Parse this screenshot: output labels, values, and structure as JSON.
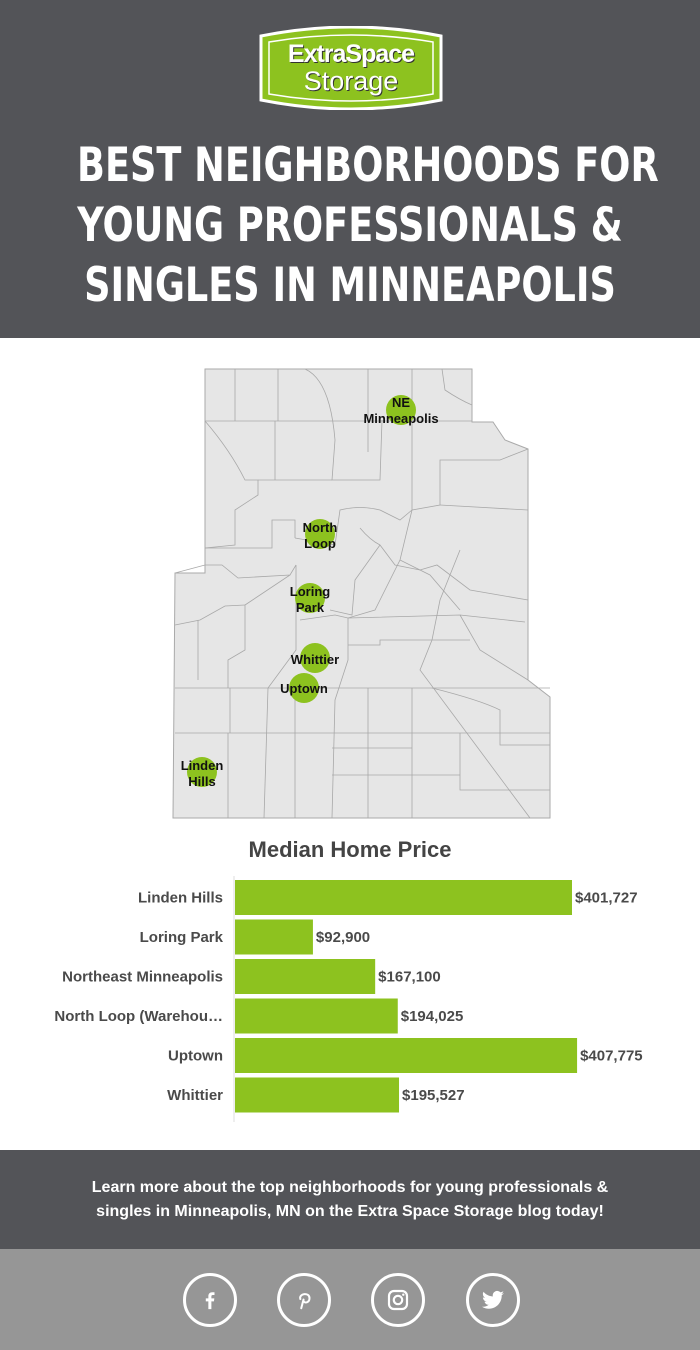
{
  "header": {
    "logo": {
      "line1": "ExtraSpace",
      "line2": "Storage",
      "registered": "®"
    },
    "title_lines": [
      "BEST NEIGHBORHOODS FOR",
      "YOUNG PROFESSIONALS &",
      "SINGLES IN MINNEAPOLIS"
    ]
  },
  "map": {
    "markers": [
      {
        "line1": "NE",
        "line2": "Minneapolis"
      },
      {
        "line1": "North",
        "line2": "Loop"
      },
      {
        "line1": "Loring",
        "line2": "Park"
      },
      {
        "line1": "Whittier",
        "line2": ""
      },
      {
        "line1": "Uptown",
        "line2": ""
      },
      {
        "line1": "Linden",
        "line2": "Hills"
      }
    ],
    "marker_color": "#8dc21f"
  },
  "chart_data": {
    "type": "bar",
    "orientation": "horizontal",
    "title": "Median Home Price",
    "categories": [
      "Linden Hills",
      "Loring Park",
      "Northeast Minneapolis",
      "North Loop (Warehou…",
      "Uptown",
      "Whittier"
    ],
    "values": [
      401727,
      92900,
      167100,
      194025,
      407775,
      195527
    ],
    "data_labels": [
      "$401,727",
      "$92,900",
      "$167,100",
      "$194,025",
      "$407,775",
      "$195,527"
    ],
    "bar_color": "#8dc21f",
    "grid": false
  },
  "cta": {
    "line1": "Learn more about the top neighborhoods for young professionals &",
    "line2": "singles in Minneapolis, MN on the Extra Space Storage blog today!"
  },
  "social": [
    "facebook-icon",
    "pinterest-icon",
    "instagram-icon",
    "twitter-icon"
  ]
}
